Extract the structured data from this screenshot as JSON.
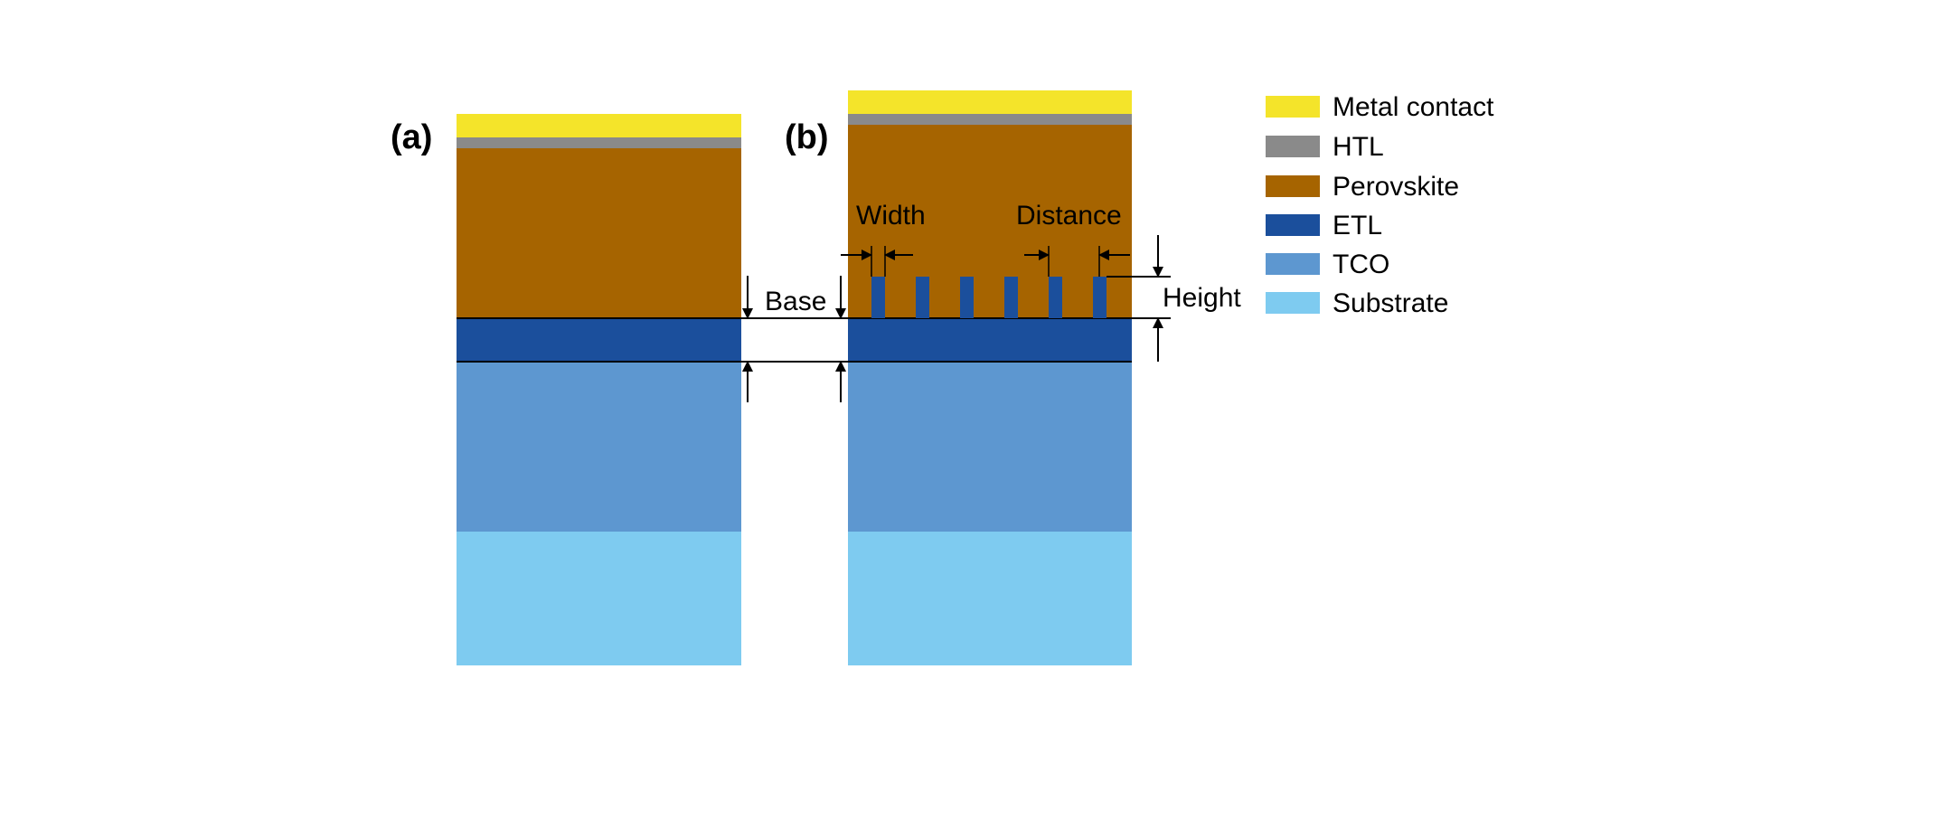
{
  "colors": {
    "metal": "#f4e42a",
    "htl": "#8a8a8a",
    "perovskite": "#a66400",
    "etl": "#1b4f9c",
    "tco": "#5d97d0",
    "substrate": "#7ecbf0",
    "line": "#000000"
  },
  "panels": {
    "a": {
      "label": "(a)"
    },
    "b": {
      "label": "(b)"
    }
  },
  "dimensions": {
    "base": "Base",
    "width": "Width",
    "distance": "Distance",
    "height": "Height"
  },
  "legend": [
    {
      "key": "metal",
      "label": "Metal contact",
      "color": "#f4e42a"
    },
    {
      "key": "htl",
      "label": "HTL",
      "color": "#8a8a8a"
    },
    {
      "key": "perovskite",
      "label": "Perovskite",
      "color": "#a66400"
    },
    {
      "key": "etl",
      "label": "ETL",
      "color": "#1b4f9c"
    },
    {
      "key": "tco",
      "label": "TCO",
      "color": "#5d97d0"
    },
    {
      "key": "substrate",
      "label": "Substrate",
      "color": "#7ecbf0"
    }
  ]
}
